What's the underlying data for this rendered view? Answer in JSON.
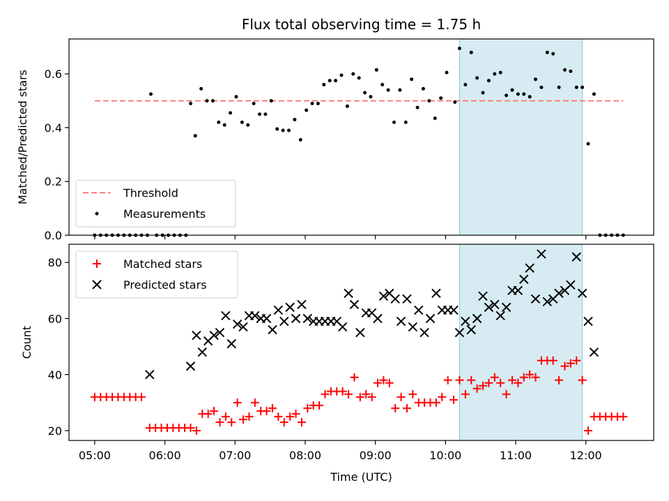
{
  "chart_data": [
    {
      "type": "scatter",
      "title": "Flux total observing time = 1.75 h",
      "xlabel": "",
      "ylabel": "Matched/Predicted stars",
      "xlim": [
        "04:38",
        "12:58"
      ],
      "ylim": [
        0,
        0.73
      ],
      "yticks": [
        "0.0",
        "0.2",
        "0.4",
        "0.6"
      ],
      "grid": false,
      "legend_position": "lower-left",
      "highlight_span": {
        "x": [
          "10:12",
          "11:57"
        ],
        "color": "#add8e6"
      },
      "threshold": {
        "name": "Threshold",
        "value": 0.5,
        "x": [
          "05:00",
          "12:32"
        ],
        "color": "#ff7f7f"
      },
      "series": [
        {
          "name": "Measurements",
          "color": "#000000",
          "points": [
            [
              "05:00",
              0
            ],
            [
              "05:05",
              0
            ],
            [
              "05:10",
              0
            ],
            [
              "05:15",
              0
            ],
            [
              "05:20",
              0
            ],
            [
              "05:25",
              0
            ],
            [
              "05:30",
              0
            ],
            [
              "05:35",
              0
            ],
            [
              "05:40",
              0
            ],
            [
              "05:45",
              0
            ],
            [
              "05:48",
              0.525
            ],
            [
              "05:53",
              0
            ],
            [
              "05:58",
              0
            ],
            [
              "06:03",
              0
            ],
            [
              "06:08",
              0
            ],
            [
              "06:13",
              0
            ],
            [
              "06:18",
              0
            ],
            [
              "06:22",
              0.49
            ],
            [
              "06:26",
              0.37
            ],
            [
              "06:31",
              0.545
            ],
            [
              "06:36",
              0.5
            ],
            [
              "06:41",
              0.5
            ],
            [
              "06:46",
              0.42
            ],
            [
              "06:51",
              0.41
            ],
            [
              "06:56",
              0.455
            ],
            [
              "07:01",
              0.515
            ],
            [
              "07:06",
              0.42
            ],
            [
              "07:11",
              0.41
            ],
            [
              "07:16",
              0.49
            ],
            [
              "07:21",
              0.45
            ],
            [
              "07:26",
              0.45
            ],
            [
              "07:31",
              0.5
            ],
            [
              "07:36",
              0.395
            ],
            [
              "07:41",
              0.39
            ],
            [
              "07:46",
              0.39
            ],
            [
              "07:51",
              0.43
            ],
            [
              "07:56",
              0.355
            ],
            [
              "08:01",
              0.465
            ],
            [
              "08:06",
              0.49
            ],
            [
              "08:11",
              0.49
            ],
            [
              "08:16",
              0.56
            ],
            [
              "08:21",
              0.575
            ],
            [
              "08:26",
              0.575
            ],
            [
              "08:31",
              0.595
            ],
            [
              "08:36",
              0.48
            ],
            [
              "08:41",
              0.6
            ],
            [
              "08:46",
              0.585
            ],
            [
              "08:51",
              0.53
            ],
            [
              "08:56",
              0.515
            ],
            [
              "09:01",
              0.615
            ],
            [
              "09:06",
              0.56
            ],
            [
              "09:11",
              0.54
            ],
            [
              "09:16",
              0.42
            ],
            [
              "09:21",
              0.54
            ],
            [
              "09:26",
              0.42
            ],
            [
              "09:31",
              0.58
            ],
            [
              "09:36",
              0.475
            ],
            [
              "09:41",
              0.545
            ],
            [
              "09:46",
              0.5
            ],
            [
              "09:51",
              0.435
            ],
            [
              "09:56",
              0.51
            ],
            [
              "10:01",
              0.605
            ],
            [
              "10:08",
              0.495
            ],
            [
              "10:12",
              0.695
            ],
            [
              "10:17",
              0.56
            ],
            [
              "10:22",
              0.68
            ],
            [
              "10:27",
              0.585
            ],
            [
              "10:32",
              0.53
            ],
            [
              "10:37",
              0.575
            ],
            [
              "10:42",
              0.6
            ],
            [
              "10:47",
              0.605
            ],
            [
              "10:52",
              0.52
            ],
            [
              "10:57",
              0.54
            ],
            [
              "11:02",
              0.525
            ],
            [
              "11:07",
              0.525
            ],
            [
              "11:12",
              0.515
            ],
            [
              "11:17",
              0.58
            ],
            [
              "11:22",
              0.55
            ],
            [
              "11:27",
              0.68
            ],
            [
              "11:32",
              0.675
            ],
            [
              "11:37",
              0.55
            ],
            [
              "11:42",
              0.615
            ],
            [
              "11:47",
              0.61
            ],
            [
              "11:52",
              0.55
            ],
            [
              "11:57",
              0.55
            ],
            [
              "12:02",
              0.34
            ],
            [
              "12:07",
              0.525
            ],
            [
              "12:12",
              0
            ],
            [
              "12:17",
              0
            ],
            [
              "12:22",
              0
            ],
            [
              "12:27",
              0
            ],
            [
              "12:32",
              0
            ]
          ]
        }
      ]
    },
    {
      "type": "scatter",
      "title": "",
      "xlabel": "Time (UTC)",
      "ylabel": "Count",
      "xlim": [
        "04:38",
        "12:58"
      ],
      "xticks": [
        "05:00",
        "06:00",
        "07:00",
        "08:00",
        "09:00",
        "10:00",
        "11:00",
        "12:00"
      ],
      "ylim": [
        16.5,
        86.5
      ],
      "yticks": [
        "20",
        "40",
        "60",
        "80"
      ],
      "grid": false,
      "legend_position": "upper-left",
      "highlight_span": {
        "x": [
          "10:12",
          "11:57"
        ],
        "color": "#add8e6"
      },
      "series": [
        {
          "name": "Matched stars",
          "marker": "+",
          "color": "#ff0000",
          "points": [
            [
              "05:00",
              32
            ],
            [
              "05:05",
              32
            ],
            [
              "05:10",
              32
            ],
            [
              "05:15",
              32
            ],
            [
              "05:20",
              32
            ],
            [
              "05:25",
              32
            ],
            [
              "05:30",
              32
            ],
            [
              "05:35",
              32
            ],
            [
              "05:40",
              32
            ],
            [
              "05:47",
              21
            ],
            [
              "05:52",
              21
            ],
            [
              "05:57",
              21
            ],
            [
              "06:02",
              21
            ],
            [
              "06:07",
              21
            ],
            [
              "06:12",
              21
            ],
            [
              "06:17",
              21
            ],
            [
              "06:22",
              21
            ],
            [
              "06:27",
              20
            ],
            [
              "06:32",
              26
            ],
            [
              "06:37",
              26
            ],
            [
              "06:42",
              27
            ],
            [
              "06:47",
              23
            ],
            [
              "06:52",
              25
            ],
            [
              "06:57",
              23
            ],
            [
              "07:02",
              30
            ],
            [
              "07:07",
              24
            ],
            [
              "07:12",
              25
            ],
            [
              "07:17",
              30
            ],
            [
              "07:22",
              27
            ],
            [
              "07:27",
              27
            ],
            [
              "07:32",
              28
            ],
            [
              "07:37",
              25
            ],
            [
              "07:42",
              23
            ],
            [
              "07:47",
              25
            ],
            [
              "07:52",
              26
            ],
            [
              "07:57",
              23
            ],
            [
              "08:02",
              28
            ],
            [
              "08:07",
              29
            ],
            [
              "08:12",
              29
            ],
            [
              "08:17",
              33
            ],
            [
              "08:22",
              34
            ],
            [
              "08:27",
              34
            ],
            [
              "08:32",
              34
            ],
            [
              "08:37",
              33
            ],
            [
              "08:42",
              39
            ],
            [
              "08:47",
              32
            ],
            [
              "08:52",
              33
            ],
            [
              "08:57",
              32
            ],
            [
              "09:02",
              37
            ],
            [
              "09:07",
              38
            ],
            [
              "09:12",
              37
            ],
            [
              "09:17",
              28
            ],
            [
              "09:22",
              32
            ],
            [
              "09:27",
              28
            ],
            [
              "09:32",
              33
            ],
            [
              "09:37",
              30
            ],
            [
              "09:42",
              30
            ],
            [
              "09:47",
              30
            ],
            [
              "09:52",
              30
            ],
            [
              "09:57",
              32
            ],
            [
              "10:02",
              38
            ],
            [
              "10:07",
              31
            ],
            [
              "10:12",
              38
            ],
            [
              "10:17",
              33
            ],
            [
              "10:22",
              38
            ],
            [
              "10:27",
              35
            ],
            [
              "10:32",
              36
            ],
            [
              "10:37",
              37
            ],
            [
              "10:42",
              39
            ],
            [
              "10:47",
              37
            ],
            [
              "10:52",
              33
            ],
            [
              "10:57",
              38
            ],
            [
              "11:02",
              37
            ],
            [
              "11:07",
              39
            ],
            [
              "11:12",
              40
            ],
            [
              "11:17",
              39
            ],
            [
              "11:22",
              45
            ],
            [
              "11:27",
              45
            ],
            [
              "11:32",
              45
            ],
            [
              "11:37",
              38
            ],
            [
              "11:42",
              43
            ],
            [
              "11:47",
              44
            ],
            [
              "11:52",
              45
            ],
            [
              "11:57",
              38
            ],
            [
              "12:02",
              20
            ],
            [
              "12:07",
              25
            ],
            [
              "12:12",
              25
            ],
            [
              "12:17",
              25
            ],
            [
              "12:22",
              25
            ],
            [
              "12:27",
              25
            ],
            [
              "12:32",
              25
            ]
          ]
        },
        {
          "name": "Predicted stars",
          "marker": "x",
          "color": "#000000",
          "points": [
            [
              "05:47",
              40
            ],
            [
              "06:22",
              43
            ],
            [
              "06:27",
              54
            ],
            [
              "06:32",
              48
            ],
            [
              "06:37",
              52
            ],
            [
              "06:42",
              54
            ],
            [
              "06:47",
              55
            ],
            [
              "06:52",
              61
            ],
            [
              "06:57",
              51
            ],
            [
              "07:02",
              58
            ],
            [
              "07:07",
              57
            ],
            [
              "07:12",
              61
            ],
            [
              "07:17",
              61
            ],
            [
              "07:22",
              60
            ],
            [
              "07:27",
              60
            ],
            [
              "07:32",
              56
            ],
            [
              "07:37",
              63
            ],
            [
              "07:42",
              59
            ],
            [
              "07:47",
              64
            ],
            [
              "07:52",
              60
            ],
            [
              "07:57",
              65
            ],
            [
              "08:02",
              60
            ],
            [
              "08:07",
              59
            ],
            [
              "08:12",
              59
            ],
            [
              "08:17",
              59
            ],
            [
              "08:22",
              59
            ],
            [
              "08:27",
              59
            ],
            [
              "08:32",
              57
            ],
            [
              "08:37",
              69
            ],
            [
              "08:42",
              65
            ],
            [
              "08:47",
              55
            ],
            [
              "08:52",
              62
            ],
            [
              "08:57",
              62
            ],
            [
              "09:02",
              60
            ],
            [
              "09:07",
              68
            ],
            [
              "09:12",
              69
            ],
            [
              "09:17",
              67
            ],
            [
              "09:22",
              59
            ],
            [
              "09:27",
              67
            ],
            [
              "09:32",
              57
            ],
            [
              "09:37",
              63
            ],
            [
              "09:42",
              55
            ],
            [
              "09:47",
              60
            ],
            [
              "09:52",
              69
            ],
            [
              "09:57",
              63
            ],
            [
              "10:02",
              63
            ],
            [
              "10:07",
              63
            ],
            [
              "10:12",
              55
            ],
            [
              "10:17",
              59
            ],
            [
              "10:22",
              56
            ],
            [
              "10:27",
              60
            ],
            [
              "10:32",
              68
            ],
            [
              "10:37",
              64
            ],
            [
              "10:42",
              65
            ],
            [
              "10:47",
              61
            ],
            [
              "10:52",
              64
            ],
            [
              "10:57",
              70
            ],
            [
              "11:02",
              70
            ],
            [
              "11:07",
              74
            ],
            [
              "11:12",
              78
            ],
            [
              "11:17",
              67
            ],
            [
              "11:22",
              83
            ],
            [
              "11:27",
              66
            ],
            [
              "11:32",
              67
            ],
            [
              "11:37",
              69
            ],
            [
              "11:42",
              70
            ],
            [
              "11:47",
              72
            ],
            [
              "11:52",
              82
            ],
            [
              "11:57",
              69
            ],
            [
              "12:02",
              59
            ],
            [
              "12:07",
              48
            ]
          ]
        }
      ]
    }
  ]
}
